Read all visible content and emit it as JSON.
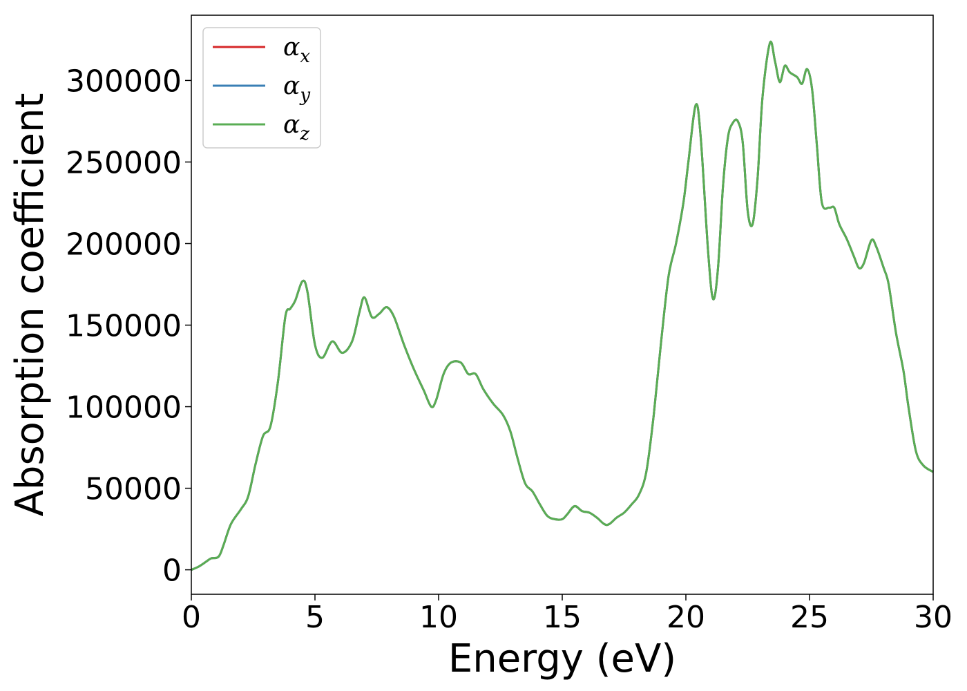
{
  "chart_data": {
    "type": "line",
    "xlabel": "Energy (eV)",
    "ylabel": "Absorption coefficient",
    "xlim": [
      0,
      30
    ],
    "ylim": [
      -15000,
      340000
    ],
    "xticks": [
      0,
      5,
      10,
      15,
      20,
      25,
      30
    ],
    "yticks": [
      0,
      50000,
      100000,
      150000,
      200000,
      250000,
      300000
    ],
    "grid": false,
    "legend_position": "top-left",
    "colors": {
      "alpha_x": "#d62728",
      "alpha_y": "#3a7fb5",
      "alpha_z": "#5aad54"
    },
    "legend": [
      {
        "symbol": "α",
        "sub": "x",
        "color": "#d62728"
      },
      {
        "symbol": "α",
        "sub": "y",
        "color": "#3a7fb5"
      },
      {
        "symbol": "α",
        "sub": "z",
        "color": "#5aad54"
      }
    ],
    "x": [
      0,
      0.3,
      0.6,
      0.8,
      1.1,
      1.3,
      1.6,
      2.0,
      2.3,
      2.6,
      2.9,
      3.2,
      3.5,
      3.8,
      4.0,
      4.2,
      4.5,
      4.7,
      5.0,
      5.3,
      5.7,
      6.1,
      6.5,
      6.8,
      7.0,
      7.3,
      7.6,
      7.9,
      8.2,
      8.6,
      9.0,
      9.4,
      9.7,
      9.9,
      10.2,
      10.5,
      10.9,
      11.2,
      11.5,
      11.8,
      12.2,
      12.6,
      12.9,
      13.2,
      13.5,
      13.8,
      14.1,
      14.4,
      14.7,
      15.0,
      15.2,
      15.5,
      15.8,
      16.1,
      16.4,
      16.7,
      16.9,
      17.2,
      17.5,
      17.8,
      18.1,
      18.4,
      18.7,
      19.0,
      19.3,
      19.6,
      19.9,
      20.1,
      20.4,
      20.6,
      20.9,
      21.1,
      21.3,
      21.5,
      21.7,
      21.9,
      22.1,
      22.3,
      22.5,
      22.7,
      22.9,
      23.1,
      23.4,
      23.6,
      23.8,
      24.0,
      24.2,
      24.5,
      24.7,
      24.9,
      25.1,
      25.3,
      25.5,
      25.8,
      26.0,
      26.2,
      26.5,
      26.8,
      27.0,
      27.2,
      27.5,
      27.7,
      28.0,
      28.2,
      28.5,
      28.8,
      29.0,
      29.3,
      29.6,
      30.0
    ],
    "series": [
      {
        "name": "α_x",
        "color": "#d62728",
        "values": [
          0,
          2000,
          5000,
          7000,
          8000,
          15000,
          28000,
          37000,
          45000,
          65000,
          82000,
          88000,
          115000,
          155000,
          160000,
          165000,
          177000,
          170000,
          138000,
          130000,
          140000,
          133000,
          140000,
          158000,
          167000,
          155000,
          157000,
          161000,
          155000,
          138000,
          123000,
          110000,
          100000,
          104000,
          120000,
          127000,
          127000,
          120000,
          120000,
          111000,
          102000,
          95000,
          85000,
          68000,
          53000,
          48000,
          40000,
          33000,
          31000,
          31000,
          34000,
          39000,
          36000,
          35000,
          32000,
          28000,
          28000,
          32000,
          35000,
          40000,
          46000,
          60000,
          95000,
          140000,
          180000,
          200000,
          225000,
          250000,
          285000,
          265000,
          195000,
          166000,
          185000,
          235000,
          265000,
          274000,
          275000,
          262000,
          220000,
          212000,
          240000,
          290000,
          323000,
          312000,
          299000,
          309000,
          305000,
          302000,
          298000,
          307000,
          295000,
          260000,
          225000,
          222000,
          222000,
          212000,
          203000,
          192000,
          185000,
          188000,
          202000,
          198000,
          185000,
          175000,
          145000,
          122000,
          100000,
          73000,
          64000,
          60000
        ]
      },
      {
        "name": "α_y",
        "color": "#3a7fb5",
        "values": [
          0,
          2000,
          5000,
          7000,
          8000,
          15000,
          28000,
          37000,
          45000,
          65000,
          82000,
          88000,
          115000,
          155000,
          160000,
          165000,
          177000,
          170000,
          138000,
          130000,
          140000,
          133000,
          140000,
          158000,
          167000,
          155000,
          157000,
          161000,
          155000,
          138000,
          123000,
          110000,
          100000,
          104000,
          120000,
          127000,
          127000,
          120000,
          120000,
          111000,
          102000,
          95000,
          85000,
          68000,
          53000,
          48000,
          40000,
          33000,
          31000,
          31000,
          34000,
          39000,
          36000,
          35000,
          32000,
          28000,
          28000,
          32000,
          35000,
          40000,
          46000,
          60000,
          95000,
          140000,
          180000,
          200000,
          225000,
          250000,
          285000,
          265000,
          195000,
          166000,
          185000,
          235000,
          265000,
          274000,
          275000,
          262000,
          220000,
          212000,
          240000,
          290000,
          323000,
          312000,
          299000,
          309000,
          305000,
          302000,
          298000,
          307000,
          295000,
          260000,
          225000,
          222000,
          222000,
          212000,
          203000,
          192000,
          185000,
          188000,
          202000,
          198000,
          185000,
          175000,
          145000,
          122000,
          100000,
          73000,
          64000,
          60000
        ]
      },
      {
        "name": "α_z",
        "color": "#5aad54",
        "values": [
          0,
          2000,
          5000,
          7000,
          8000,
          15000,
          28000,
          37000,
          45000,
          65000,
          82000,
          88000,
          115000,
          155000,
          160000,
          165000,
          177000,
          170000,
          138000,
          130000,
          140000,
          133000,
          140000,
          158000,
          167000,
          155000,
          157000,
          161000,
          155000,
          138000,
          123000,
          110000,
          100000,
          104000,
          120000,
          127000,
          127000,
          120000,
          120000,
          111000,
          102000,
          95000,
          85000,
          68000,
          53000,
          48000,
          40000,
          33000,
          31000,
          31000,
          34000,
          39000,
          36000,
          35000,
          32000,
          28000,
          28000,
          32000,
          35000,
          40000,
          46000,
          60000,
          95000,
          140000,
          180000,
          200000,
          225000,
          250000,
          285000,
          265000,
          195000,
          166000,
          185000,
          235000,
          265000,
          274000,
          275000,
          262000,
          220000,
          212000,
          240000,
          290000,
          323000,
          312000,
          299000,
          309000,
          305000,
          302000,
          298000,
          307000,
          295000,
          260000,
          225000,
          222000,
          222000,
          212000,
          203000,
          192000,
          185000,
          188000,
          202000,
          198000,
          185000,
          175000,
          145000,
          122000,
          100000,
          73000,
          64000,
          60000
        ]
      }
    ]
  }
}
